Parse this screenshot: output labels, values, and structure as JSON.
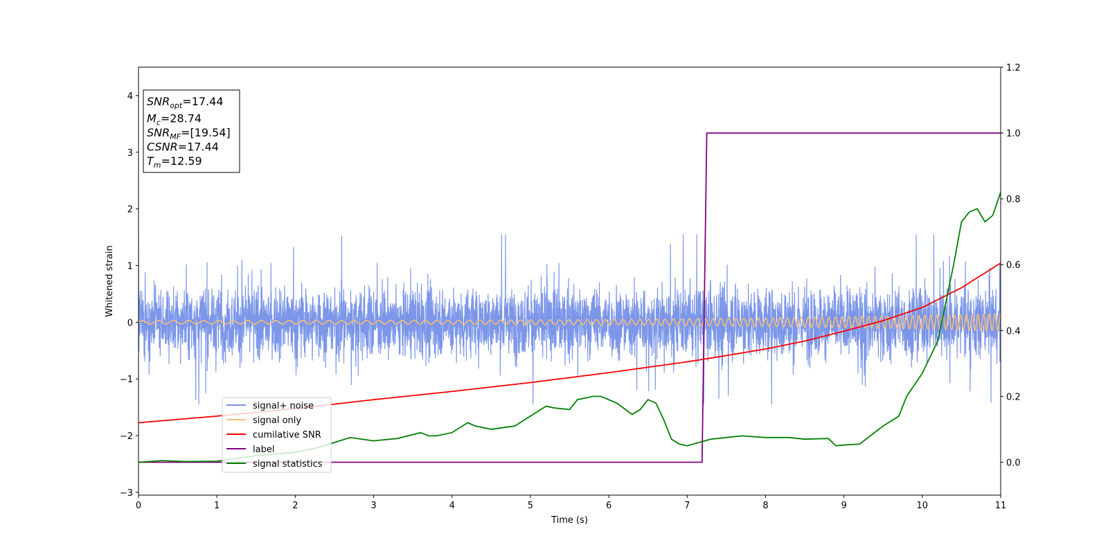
{
  "chart_data": {
    "type": "line",
    "xlabel": "Time (s)",
    "ylabel": "Whitened strain",
    "xlim": [
      0,
      11
    ],
    "ylim": [
      -3.05,
      4.5
    ],
    "y2lim": [
      -0.1,
      1.2
    ],
    "x_ticks": [
      "0",
      "1",
      "2",
      "3",
      "4",
      "5",
      "6",
      "7",
      "8",
      "9",
      "10",
      "11"
    ],
    "y_ticks": [
      "−3",
      "−2",
      "−1",
      "0",
      "1",
      "2",
      "3",
      "4"
    ],
    "y2_ticks": [
      "0.0",
      "0.2",
      "0.4",
      "0.6",
      "0.8",
      "1.0",
      "1.2"
    ],
    "grid": false,
    "legend_position": "lower-left",
    "annotation": [
      {
        "base": "SNR",
        "sub": "opt",
        "value": "=17.44"
      },
      {
        "base": "M",
        "sub": "c",
        "value": "=28.74"
      },
      {
        "base": "SNR",
        "sub": "MF",
        "value": "=[19.54]"
      },
      {
        "base": "CSNR",
        "sub": "",
        "value": "=17.44"
      },
      {
        "base": "T",
        "sub": "m",
        "value": "=12.59"
      }
    ],
    "series": [
      {
        "name": "signal+ noise",
        "color": "#7590e8",
        "axis": "left",
        "description_values": {
          "mean": 0.0,
          "typical_amplitude": 1.0,
          "max_peak": 1.55,
          "min_peak": -1.45
        }
      },
      {
        "name": "signal only",
        "color": "#f5bd7a",
        "axis": "left",
        "description_values": {
          "start_amplitude": 0.03,
          "end_amplitude": 0.15,
          "start_cycles_per_s": 5,
          "end_cycles_per_s": 14
        }
      },
      {
        "name": "cumilative SNR",
        "color": "#ff0000",
        "axis": "right",
        "x": [
          0,
          1,
          2,
          3,
          4,
          5,
          6,
          7,
          7.5,
          8,
          8.5,
          9,
          9.5,
          10,
          10.5,
          11
        ],
        "values": [
          0.12,
          0.14,
          0.163,
          0.19,
          0.215,
          0.242,
          0.272,
          0.305,
          0.324,
          0.344,
          0.368,
          0.398,
          0.43,
          0.47,
          0.53,
          0.605
        ]
      },
      {
        "name": "label",
        "color": "#800080",
        "axis": "right",
        "x": [
          0,
          7.19,
          7.25,
          11
        ],
        "values": [
          0.0,
          0.0,
          1.0,
          1.0
        ]
      },
      {
        "name": "signal statistics",
        "color": "#008000",
        "axis": "right",
        "x": [
          0,
          0.3,
          0.6,
          1.0,
          1.5,
          2.0,
          2.3,
          2.5,
          2.7,
          3.0,
          3.3,
          3.6,
          3.7,
          3.8,
          4.0,
          4.2,
          4.3,
          4.5,
          4.8,
          5.0,
          5.2,
          5.3,
          5.5,
          5.6,
          5.8,
          5.9,
          6.1,
          6.3,
          6.4,
          6.5,
          6.6,
          6.7,
          6.8,
          6.9,
          7.0,
          7.3,
          7.5,
          7.7,
          8.0,
          8.3,
          8.5,
          8.8,
          8.9,
          9.0,
          9.2,
          9.5,
          9.7,
          9.8,
          10.0,
          10.2,
          10.4,
          10.5,
          10.6,
          10.7,
          10.8,
          10.9,
          11.0
        ],
        "values": [
          0.0,
          0.005,
          0.002,
          0.003,
          0.02,
          0.03,
          0.045,
          0.06,
          0.075,
          0.065,
          0.072,
          0.09,
          0.08,
          0.08,
          0.09,
          0.12,
          0.11,
          0.1,
          0.11,
          0.14,
          0.17,
          0.165,
          0.16,
          0.19,
          0.2,
          0.2,
          0.18,
          0.145,
          0.16,
          0.19,
          0.18,
          0.13,
          0.07,
          0.055,
          0.05,
          0.07,
          0.075,
          0.08,
          0.075,
          0.075,
          0.07,
          0.072,
          0.05,
          0.052,
          0.055,
          0.11,
          0.14,
          0.2,
          0.27,
          0.37,
          0.6,
          0.73,
          0.76,
          0.77,
          0.73,
          0.75,
          0.82
        ]
      }
    ]
  }
}
